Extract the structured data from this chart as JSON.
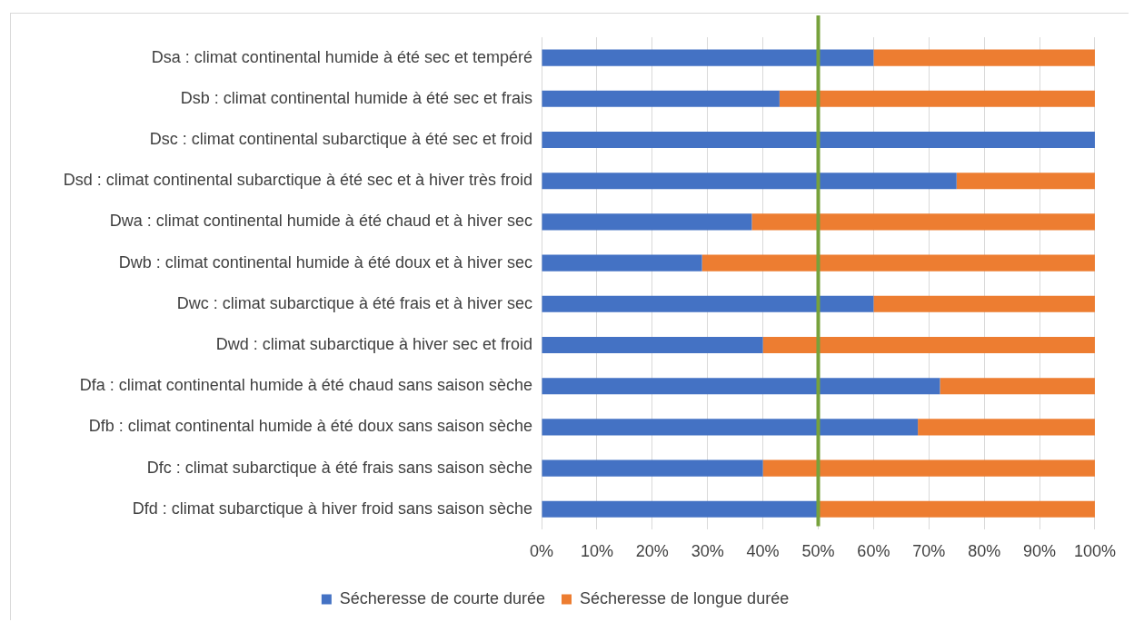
{
  "chart_data": {
    "type": "bar",
    "orientation": "horizontal",
    "stacked": true,
    "categories": [
      "Dsa : climat continental humide à été sec et tempéré",
      "Dsb : climat continental humide à été sec et frais",
      "Dsc : climat continental subarctique à été sec et froid",
      "Dsd : climat continental subarctique à été sec et à hiver très froid",
      "Dwa : climat continental humide à été chaud et à hiver sec",
      "Dwb : climat continental humide à été doux et à hiver sec",
      "Dwc : climat subarctique à été frais et à hiver sec",
      "Dwd : climat subarctique à hiver sec et froid",
      "Dfa : climat continental humide à été chaud sans saison sèche",
      "Dfb : climat continental humide à été doux sans saison sèche",
      "Dfc : climat subarctique à été frais sans saison sèche",
      "Dfd : climat subarctique à hiver froid sans saison sèche"
    ],
    "series": [
      {
        "name": "Sécheresse de courte durée",
        "color": "#4472c4",
        "values": [
          60,
          43,
          100,
          75,
          38,
          29,
          60,
          40,
          72,
          68,
          40,
          50
        ]
      },
      {
        "name": "Sécheresse de longue durée",
        "color": "#ed7d31",
        "values": [
          40,
          57,
          0,
          25,
          62,
          71,
          40,
          60,
          28,
          32,
          60,
          50
        ]
      }
    ],
    "xlim": [
      0,
      100
    ],
    "xticks": [
      {
        "value": 0,
        "label": "0%"
      },
      {
        "value": 10,
        "label": "10%"
      },
      {
        "value": 20,
        "label": "20%"
      },
      {
        "value": 30,
        "label": "30%"
      },
      {
        "value": 40,
        "label": "40%"
      },
      {
        "value": 50,
        "label": "50%"
      },
      {
        "value": 60,
        "label": "60%"
      },
      {
        "value": 70,
        "label": "70%"
      },
      {
        "value": 80,
        "label": "80%"
      },
      {
        "value": 90,
        "label": "90%"
      },
      {
        "value": 100,
        "label": "100%"
      }
    ],
    "grid": "x",
    "legend": "bottom",
    "ref_lines": [
      {
        "axis": "x",
        "value": 50,
        "color": "#77a23c"
      }
    ]
  }
}
